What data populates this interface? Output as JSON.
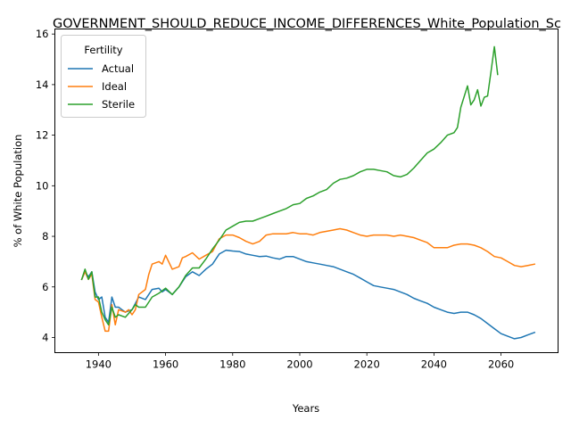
{
  "chart_data": {
    "type": "line",
    "title": "GOVERNMENT_SHOULD_REDUCE_INCOME_DIFFERENCES_White_Population_Sc",
    "xlabel": "Years",
    "ylabel": "% of White Population",
    "xlim": [
      1927,
      2077
    ],
    "ylim": [
      3.4,
      16.2
    ],
    "xticks": [
      1940,
      1960,
      1980,
      2000,
      2020,
      2040,
      2060
    ],
    "yticks": [
      4,
      6,
      8,
      10,
      12,
      14,
      16
    ],
    "grid": false,
    "legend": {
      "title": "Fertility",
      "placement": "upper-left"
    },
    "series": [
      {
        "name": "Actual",
        "color": "#1f77b4",
        "points": [
          [
            1935,
            6.3
          ],
          [
            1936,
            6.6
          ],
          [
            1937,
            6.4
          ],
          [
            1938,
            6.6
          ],
          [
            1939,
            5.8
          ],
          [
            1940,
            5.5
          ],
          [
            1941,
            5.6
          ],
          [
            1942,
            4.8
          ],
          [
            1943,
            4.6
          ],
          [
            1944,
            5.6
          ],
          [
            1945,
            5.2
          ],
          [
            1946,
            5.2
          ],
          [
            1947,
            5.1
          ],
          [
            1948,
            5.0
          ],
          [
            1950,
            5.1
          ],
          [
            1952,
            5.6
          ],
          [
            1954,
            5.5
          ],
          [
            1956,
            5.9
          ],
          [
            1958,
            5.95
          ],
          [
            1959,
            5.8
          ],
          [
            1960,
            5.9
          ],
          [
            1962,
            5.7
          ],
          [
            1964,
            6.0
          ],
          [
            1966,
            6.4
          ],
          [
            1968,
            6.6
          ],
          [
            1970,
            6.45
          ],
          [
            1972,
            6.7
          ],
          [
            1974,
            6.9
          ],
          [
            1976,
            7.3
          ],
          [
            1978,
            7.45
          ],
          [
            1980,
            7.42
          ],
          [
            1982,
            7.4
          ],
          [
            1984,
            7.3
          ],
          [
            1986,
            7.25
          ],
          [
            1988,
            7.2
          ],
          [
            1990,
            7.22
          ],
          [
            1992,
            7.15
          ],
          [
            1994,
            7.1
          ],
          [
            1996,
            7.2
          ],
          [
            1998,
            7.2
          ],
          [
            2000,
            7.1
          ],
          [
            2002,
            7.0
          ],
          [
            2004,
            6.95
          ],
          [
            2006,
            6.9
          ],
          [
            2008,
            6.85
          ],
          [
            2010,
            6.8
          ],
          [
            2012,
            6.7
          ],
          [
            2014,
            6.6
          ],
          [
            2016,
            6.5
          ],
          [
            2018,
            6.35
          ],
          [
            2020,
            6.2
          ],
          [
            2022,
            6.05
          ],
          [
            2024,
            6.0
          ],
          [
            2026,
            5.95
          ],
          [
            2028,
            5.9
          ],
          [
            2030,
            5.8
          ],
          [
            2032,
            5.7
          ],
          [
            2034,
            5.55
          ],
          [
            2036,
            5.45
          ],
          [
            2038,
            5.35
          ],
          [
            2040,
            5.2
          ],
          [
            2042,
            5.1
          ],
          [
            2044,
            5.0
          ],
          [
            2046,
            4.95
          ],
          [
            2048,
            5.0
          ],
          [
            2050,
            5.0
          ],
          [
            2052,
            4.9
          ],
          [
            2054,
            4.75
          ],
          [
            2056,
            4.55
          ],
          [
            2058,
            4.35
          ],
          [
            2060,
            4.15
          ],
          [
            2062,
            4.05
          ],
          [
            2064,
            3.95
          ],
          [
            2066,
            4.0
          ],
          [
            2068,
            4.1
          ],
          [
            2070,
            4.2
          ]
        ]
      },
      {
        "name": "Ideal",
        "color": "#ff7f0e",
        "points": [
          [
            1935,
            6.3
          ],
          [
            1936,
            6.6
          ],
          [
            1937,
            6.3
          ],
          [
            1938,
            6.5
          ],
          [
            1939,
            5.5
          ],
          [
            1940,
            5.4
          ],
          [
            1941,
            4.8
          ],
          [
            1942,
            4.25
          ],
          [
            1943,
            4.25
          ],
          [
            1944,
            5.3
          ],
          [
            1945,
            4.5
          ],
          [
            1946,
            5.1
          ],
          [
            1948,
            5.0
          ],
          [
            1949,
            5.1
          ],
          [
            1950,
            4.9
          ],
          [
            1951,
            5.1
          ],
          [
            1952,
            5.7
          ],
          [
            1954,
            5.9
          ],
          [
            1955,
            6.5
          ],
          [
            1956,
            6.9
          ],
          [
            1958,
            7.0
          ],
          [
            1959,
            6.9
          ],
          [
            1960,
            7.25
          ],
          [
            1962,
            6.7
          ],
          [
            1964,
            6.8
          ],
          [
            1965,
            7.15
          ],
          [
            1966,
            7.2
          ],
          [
            1968,
            7.35
          ],
          [
            1970,
            7.1
          ],
          [
            1972,
            7.25
          ],
          [
            1974,
            7.4
          ],
          [
            1976,
            7.9
          ],
          [
            1978,
            8.05
          ],
          [
            1980,
            8.05
          ],
          [
            1982,
            7.95
          ],
          [
            1984,
            7.8
          ],
          [
            1986,
            7.7
          ],
          [
            1988,
            7.8
          ],
          [
            1990,
            8.05
          ],
          [
            1992,
            8.1
          ],
          [
            1994,
            8.1
          ],
          [
            1996,
            8.1
          ],
          [
            1998,
            8.15
          ],
          [
            2000,
            8.1
          ],
          [
            2002,
            8.1
          ],
          [
            2004,
            8.05
          ],
          [
            2006,
            8.15
          ],
          [
            2008,
            8.2
          ],
          [
            2010,
            8.25
          ],
          [
            2012,
            8.3
          ],
          [
            2014,
            8.25
          ],
          [
            2016,
            8.15
          ],
          [
            2018,
            8.05
          ],
          [
            2020,
            8.0
          ],
          [
            2022,
            8.05
          ],
          [
            2024,
            8.05
          ],
          [
            2026,
            8.05
          ],
          [
            2028,
            8.0
          ],
          [
            2030,
            8.05
          ],
          [
            2032,
            8.0
          ],
          [
            2034,
            7.95
          ],
          [
            2036,
            7.85
          ],
          [
            2038,
            7.75
          ],
          [
            2040,
            7.55
          ],
          [
            2042,
            7.55
          ],
          [
            2044,
            7.55
          ],
          [
            2046,
            7.65
          ],
          [
            2048,
            7.7
          ],
          [
            2050,
            7.7
          ],
          [
            2052,
            7.65
          ],
          [
            2054,
            7.55
          ],
          [
            2056,
            7.4
          ],
          [
            2058,
            7.2
          ],
          [
            2060,
            7.15
          ],
          [
            2062,
            7.0
          ],
          [
            2064,
            6.85
          ],
          [
            2066,
            6.8
          ],
          [
            2068,
            6.85
          ],
          [
            2070,
            6.9
          ]
        ]
      },
      {
        "name": "Sterile",
        "color": "#2ca02c",
        "points": [
          [
            1935,
            6.3
          ],
          [
            1936,
            6.7
          ],
          [
            1937,
            6.3
          ],
          [
            1938,
            6.6
          ],
          [
            1939,
            5.6
          ],
          [
            1940,
            5.6
          ],
          [
            1941,
            5.0
          ],
          [
            1942,
            4.7
          ],
          [
            1943,
            4.5
          ],
          [
            1944,
            5.2
          ],
          [
            1945,
            4.8
          ],
          [
            1946,
            4.9
          ],
          [
            1948,
            4.8
          ],
          [
            1950,
            5.1
          ],
          [
            1951,
            5.3
          ],
          [
            1952,
            5.2
          ],
          [
            1954,
            5.2
          ],
          [
            1956,
            5.6
          ],
          [
            1958,
            5.75
          ],
          [
            1960,
            5.95
          ],
          [
            1962,
            5.7
          ],
          [
            1964,
            6.0
          ],
          [
            1966,
            6.45
          ],
          [
            1968,
            6.75
          ],
          [
            1970,
            6.75
          ],
          [
            1972,
            7.1
          ],
          [
            1974,
            7.5
          ],
          [
            1976,
            7.85
          ],
          [
            1978,
            8.25
          ],
          [
            1980,
            8.4
          ],
          [
            1982,
            8.55
          ],
          [
            1984,
            8.6
          ],
          [
            1986,
            8.6
          ],
          [
            1988,
            8.7
          ],
          [
            1990,
            8.8
          ],
          [
            1992,
            8.9
          ],
          [
            1994,
            9.0
          ],
          [
            1996,
            9.1
          ],
          [
            1998,
            9.25
          ],
          [
            2000,
            9.3
          ],
          [
            2002,
            9.5
          ],
          [
            2004,
            9.6
          ],
          [
            2006,
            9.75
          ],
          [
            2008,
            9.85
          ],
          [
            2010,
            10.1
          ],
          [
            2012,
            10.25
          ],
          [
            2014,
            10.3
          ],
          [
            2016,
            10.4
          ],
          [
            2018,
            10.55
          ],
          [
            2020,
            10.65
          ],
          [
            2022,
            10.65
          ],
          [
            2024,
            10.6
          ],
          [
            2026,
            10.55
          ],
          [
            2028,
            10.4
          ],
          [
            2030,
            10.35
          ],
          [
            2032,
            10.45
          ],
          [
            2034,
            10.7
          ],
          [
            2036,
            11.0
          ],
          [
            2038,
            11.3
          ],
          [
            2040,
            11.45
          ],
          [
            2042,
            11.7
          ],
          [
            2044,
            12.0
          ],
          [
            2046,
            12.1
          ],
          [
            2047,
            12.3
          ],
          [
            2048,
            13.1
          ],
          [
            2050,
            13.95
          ],
          [
            2051,
            13.2
          ],
          [
            2052,
            13.4
          ],
          [
            2053,
            13.8
          ],
          [
            2054,
            13.15
          ],
          [
            2055,
            13.5
          ],
          [
            2056,
            13.55
          ],
          [
            2057,
            14.5
          ],
          [
            2058,
            15.5
          ],
          [
            2059,
            14.4
          ]
        ]
      }
    ]
  }
}
